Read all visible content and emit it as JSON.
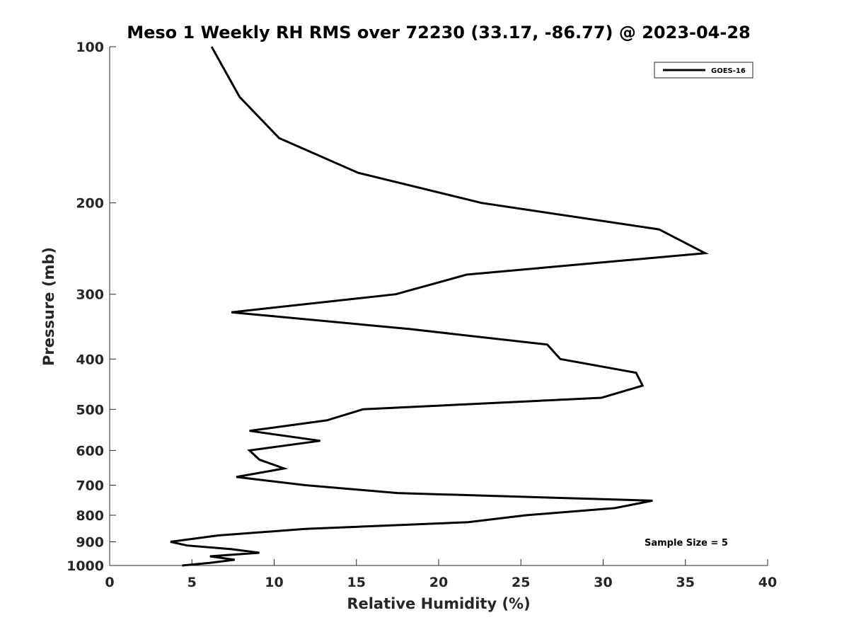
{
  "chart_data": {
    "type": "line",
    "title": "Meso 1 Weekly RH RMS over 72230 (33.17, -86.77) @ 2023-04-28",
    "xlabel": "Relative Humidity (%)",
    "ylabel": "Pressure (mb)",
    "xlim": [
      0,
      40
    ],
    "ylim": [
      100,
      1000
    ],
    "y_scale": "log",
    "y_reversed": true,
    "x_ticks": [
      0,
      5,
      10,
      15,
      20,
      25,
      30,
      35,
      40
    ],
    "y_ticks": [
      100,
      200,
      300,
      400,
      500,
      600,
      700,
      800,
      900,
      1000
    ],
    "grid": false,
    "legend_position": "top-right",
    "series": [
      {
        "name": "GOES-16",
        "color": "#000000",
        "points": [
          {
            "rh": 6.2,
            "p": 100
          },
          {
            "rh": 7.9,
            "p": 125
          },
          {
            "rh": 10.3,
            "p": 150
          },
          {
            "rh": 15.1,
            "p": 175
          },
          {
            "rh": 22.6,
            "p": 200
          },
          {
            "rh": 33.4,
            "p": 225
          },
          {
            "rh": 36.2,
            "p": 250
          },
          {
            "rh": 21.7,
            "p": 275
          },
          {
            "rh": 17.4,
            "p": 300
          },
          {
            "rh": 7.4,
            "p": 325
          },
          {
            "rh": 18.2,
            "p": 350
          },
          {
            "rh": 26.6,
            "p": 375
          },
          {
            "rh": 27.4,
            "p": 400
          },
          {
            "rh": 32.0,
            "p": 425
          },
          {
            "rh": 32.4,
            "p": 450
          },
          {
            "rh": 29.9,
            "p": 475
          },
          {
            "rh": 15.4,
            "p": 500
          },
          {
            "rh": 13.2,
            "p": 525
          },
          {
            "rh": 8.5,
            "p": 550
          },
          {
            "rh": 12.8,
            "p": 575
          },
          {
            "rh": 8.5,
            "p": 600
          },
          {
            "rh": 9.1,
            "p": 625
          },
          {
            "rh": 10.6,
            "p": 650
          },
          {
            "rh": 7.7,
            "p": 675
          },
          {
            "rh": 11.9,
            "p": 700
          },
          {
            "rh": 17.5,
            "p": 725
          },
          {
            "rh": 33.0,
            "p": 750
          },
          {
            "rh": 30.7,
            "p": 775
          },
          {
            "rh": 25.3,
            "p": 800
          },
          {
            "rh": 21.8,
            "p": 825
          },
          {
            "rh": 11.9,
            "p": 850
          },
          {
            "rh": 6.6,
            "p": 875
          },
          {
            "rh": 3.7,
            "p": 900
          },
          {
            "rh": 4.7,
            "p": 915
          },
          {
            "rh": 7.4,
            "p": 930
          },
          {
            "rh": 9.1,
            "p": 945
          },
          {
            "rh": 6.1,
            "p": 960
          },
          {
            "rh": 7.6,
            "p": 975
          },
          {
            "rh": 6.1,
            "p": 988
          },
          {
            "rh": 4.4,
            "p": 1000
          }
        ]
      }
    ],
    "annotations": [
      {
        "text": "Sample Size = 5"
      }
    ]
  }
}
